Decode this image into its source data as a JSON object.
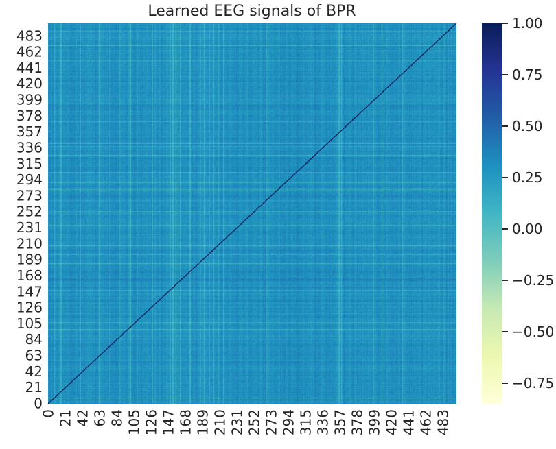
{
  "chart_data": {
    "type": "heatmap",
    "title": "Learned EEG signals of BPR",
    "xlabel": "",
    "ylabel": "",
    "matrix_size": 500,
    "x_ticks": [
      "0",
      "21",
      "42",
      "63",
      "84",
      "105",
      "126",
      "147",
      "168",
      "189",
      "210",
      "231",
      "252",
      "273",
      "294",
      "315",
      "336",
      "357",
      "378",
      "399",
      "420",
      "441",
      "462",
      "483"
    ],
    "y_ticks": [
      "0",
      "21",
      "42",
      "63",
      "84",
      "105",
      "126",
      "147",
      "168",
      "189",
      "210",
      "231",
      "252",
      "273",
      "294",
      "315",
      "336",
      "357",
      "378",
      "399",
      "420",
      "441",
      "462",
      "483"
    ],
    "colorbar": {
      "ticks": [
        "1.00",
        "0.75",
        "0.50",
        "0.25",
        "0.00",
        "−0.25",
        "−0.50",
        "−0.75"
      ],
      "tick_values": [
        1.0,
        0.75,
        0.5,
        0.25,
        0.0,
        -0.25,
        -0.5,
        -0.75
      ],
      "vmin": -0.85,
      "vmax": 1.0,
      "colormap": "YlGnBu"
    },
    "diagonal_value": 1.0,
    "typical_offdiagonal_range": [
      0.0,
      0.5
    ],
    "typical_offdiagonal_mean": 0.3,
    "colors": {
      "dark_navy": "#081d58",
      "mid_blue": "#2c7fb8",
      "teal": "#41b6c4",
      "light_green": "#c7e9b4",
      "pale_yellow": "#ffffd9"
    }
  }
}
